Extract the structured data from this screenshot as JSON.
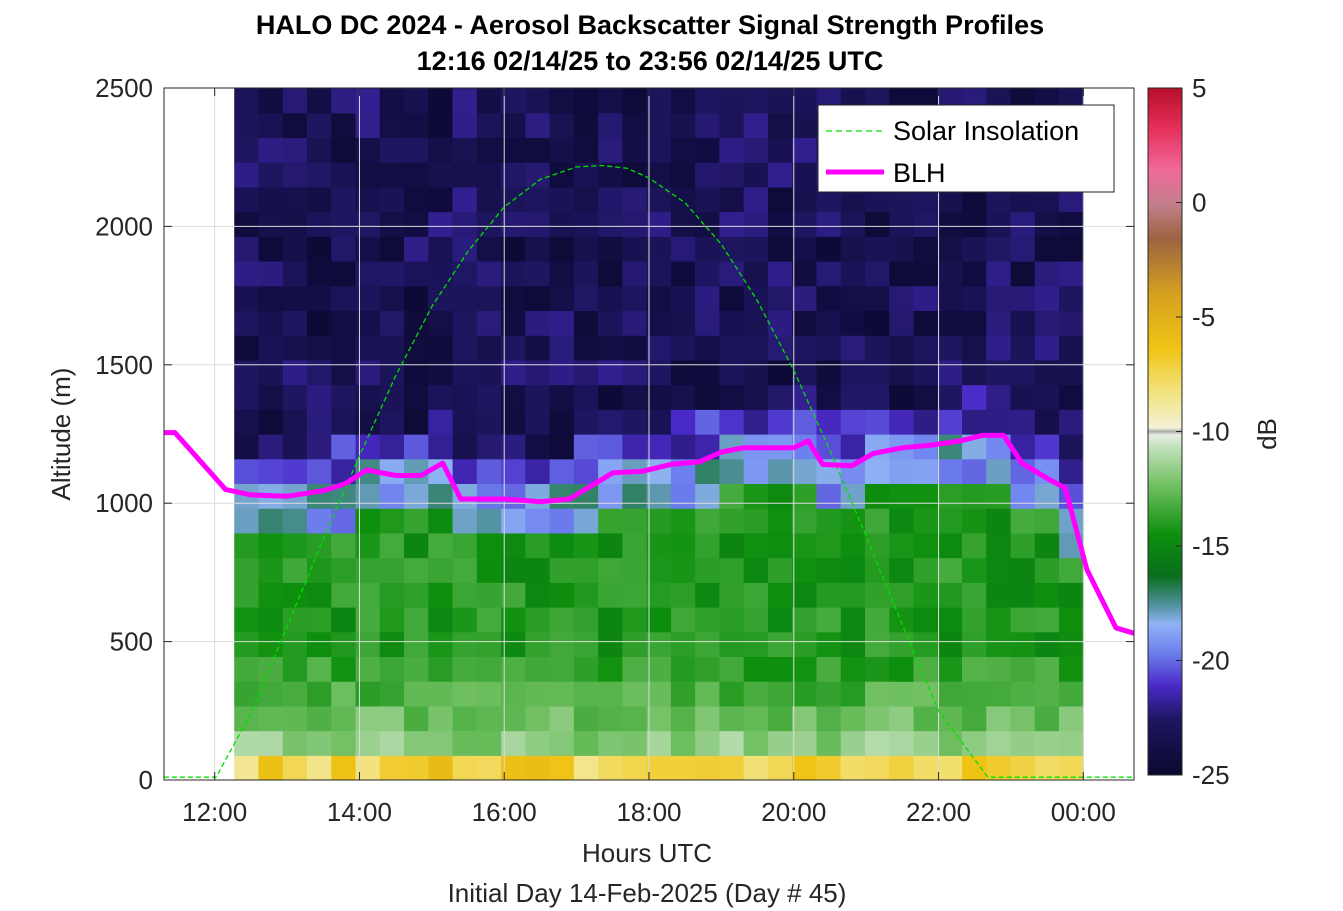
{
  "title": "HALO DC 2024 - Aerosol Backscatter Signal Strength Profiles",
  "subtitle": "12:16 02/14/25 to 23:56 02/14/25  UTC",
  "chart_data": {
    "type": "heatmap",
    "xlabel": "Hours UTC",
    "xlabel2": "Initial Day 14-Feb-2025 (Day # 45)",
    "ylabel": "Altitude (m)",
    "colorbar_label": "dB",
    "xlim": [
      11.3,
      24.7
    ],
    "ylim": [
      0,
      2500
    ],
    "clim": [
      -25,
      5
    ],
    "x_ticks": [
      12,
      14,
      16,
      18,
      20,
      22,
      24
    ],
    "x_tick_labels": [
      "12:00",
      "14:00",
      "16:00",
      "18:00",
      "20:00",
      "22:00",
      "00:00"
    ],
    "y_ticks": [
      0,
      500,
      1000,
      1500,
      2000,
      2500
    ],
    "y_tick_labels": [
      "0",
      "500",
      "1000",
      "1500",
      "2000",
      "2500"
    ],
    "cbar_ticks": [
      5,
      0,
      -5,
      -10,
      -15,
      -20,
      -25
    ],
    "cbar_tick_labels": [
      "5",
      "0",
      "-5",
      "-10",
      "-15",
      "-20",
      "-25"
    ],
    "grid": true,
    "legend_position": "top-right",
    "heatmap_description": {
      "x_start": 12.27,
      "x_end": 24.0,
      "n_columns": 35,
      "y_start": 0,
      "y_end": 2500,
      "n_rows": 28,
      "near_surface_band_db": -7,
      "surface_layer_db": -12,
      "mixed_layer_db": -15,
      "layer_top_db": -19,
      "free_troposphere_db": -23.5
    },
    "series": [
      {
        "name": "Solar Insolation",
        "style": "dashed",
        "color": "#00e000",
        "x": [
          11.3,
          12.02,
          12.5,
          13.0,
          13.5,
          14.0,
          14.5,
          15.0,
          15.5,
          16.0,
          16.5,
          17.0,
          17.35,
          17.7,
          18.0,
          18.5,
          19.0,
          19.5,
          20.0,
          20.5,
          21.0,
          21.5,
          22.0,
          22.68,
          24.7
        ],
        "y": [
          10,
          10,
          240,
          555,
          870,
          1170,
          1460,
          1710,
          1910,
          2070,
          2170,
          2215,
          2220,
          2210,
          2175,
          2085,
          1935,
          1730,
          1480,
          1190,
          880,
          560,
          250,
          10,
          10
        ]
      },
      {
        "name": "BLH",
        "style": "solid",
        "color": "#ff00ff",
        "x": [
          11.3,
          11.45,
          12.15,
          12.5,
          13.0,
          13.5,
          13.8,
          14.1,
          14.5,
          14.85,
          15.15,
          15.4,
          16.0,
          16.5,
          16.9,
          17.5,
          17.9,
          18.3,
          18.7,
          19.0,
          19.3,
          19.6,
          20.0,
          20.2,
          20.4,
          20.8,
          21.1,
          21.5,
          21.9,
          22.3,
          22.6,
          22.9,
          23.15,
          23.5,
          23.75,
          24.05,
          24.45,
          24.7
        ],
        "y": [
          1255,
          1255,
          1050,
          1030,
          1025,
          1045,
          1070,
          1120,
          1100,
          1100,
          1145,
          1015,
          1015,
          1005,
          1015,
          1110,
          1115,
          1140,
          1150,
          1185,
          1200,
          1200,
          1200,
          1225,
          1140,
          1135,
          1180,
          1200,
          1210,
          1225,
          1245,
          1245,
          1145,
          1090,
          1055,
          760,
          550,
          530
        ]
      }
    ]
  }
}
